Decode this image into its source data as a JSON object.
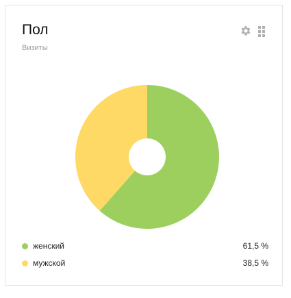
{
  "widget": {
    "title": "Пол",
    "subtitle": "Визиты",
    "settings_icon": "gear-icon",
    "drag_icon": "drag-handle-icon"
  },
  "chart_data": {
    "type": "pie",
    "title": "Пол",
    "subtitle": "Визиты",
    "categories": [
      "женский",
      "мужской"
    ],
    "values": [
      61.5,
      38.5
    ],
    "colors": [
      "#9ccf5e",
      "#ffd966"
    ],
    "donut": true,
    "legend": "bottom"
  },
  "legend": [
    {
      "label": "женский",
      "value": "61,5 %",
      "color": "#9ccf5e"
    },
    {
      "label": "мужской",
      "value": "38,5 %",
      "color": "#ffd966"
    }
  ]
}
